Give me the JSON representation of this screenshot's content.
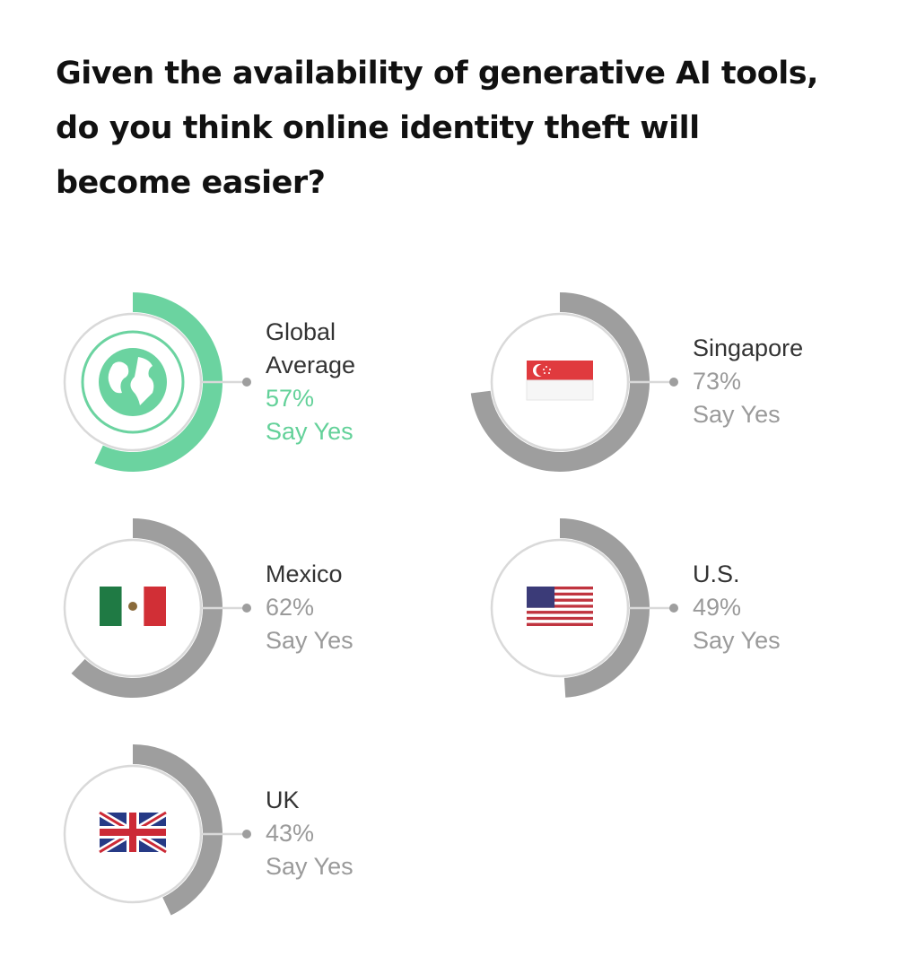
{
  "title": "Given the availability of generative AI tools,\ndo you think online identity theft will\nbecome easier?",
  "colors": {
    "highlight": "#6bd3a0",
    "arc": "#9e9e9e",
    "ring": "#d9d9d9",
    "text_dark": "#333333",
    "text_muted": "#9a9a9a"
  },
  "chart_data": {
    "type": "radial-bar",
    "title": "Given the availability of generative AI tools, do you think online identity theft will become easier?",
    "unit": "%",
    "items": [
      {
        "name": "Global\nAverage",
        "value": 57,
        "value_label": "57%",
        "sub_label": "Say Yes",
        "icon": "globe-icon",
        "highlight": true
      },
      {
        "name": "Singapore",
        "value": 73,
        "value_label": "73%",
        "sub_label": "Say Yes",
        "icon": "singapore-flag-icon"
      },
      {
        "name": "Mexico",
        "value": 62,
        "value_label": "62%",
        "sub_label": "Say Yes",
        "icon": "mexico-flag-icon"
      },
      {
        "name": "U.S.",
        "value": 49,
        "value_label": "49%",
        "sub_label": "Say Yes",
        "icon": "us-flag-icon"
      },
      {
        "name": "UK",
        "value": 43,
        "value_label": "43%",
        "sub_label": "Say Yes",
        "icon": "uk-flag-icon"
      }
    ]
  }
}
